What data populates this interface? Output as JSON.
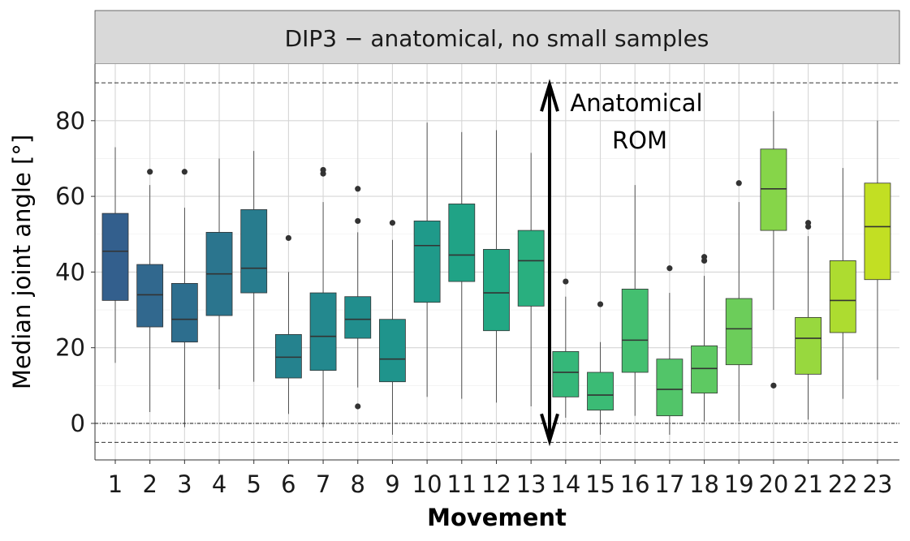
{
  "chart_data": {
    "type": "box",
    "title": "DIP3 − anatomical, no small samples",
    "xlabel": "Movement",
    "ylabel": "Median joint angle [°]",
    "ylim": [
      -10,
      94
    ],
    "yticks": [
      0,
      20,
      40,
      60,
      80
    ],
    "grid": true,
    "reference_lines": {
      "upper_rom": 90,
      "lower_rom": -5,
      "zero": 0
    },
    "annotation": {
      "line1": "Anatomical",
      "line2": "ROM",
      "arrow_from": -5,
      "arrow_to": 90
    },
    "categories": [
      "1",
      "2",
      "3",
      "4",
      "5",
      "6",
      "7",
      "8",
      "9",
      "10",
      "11",
      "12",
      "13",
      "14",
      "15",
      "16",
      "17",
      "18",
      "19",
      "20",
      "21",
      "22",
      "23"
    ],
    "boxes": [
      {
        "whisker_low": 16,
        "q1": 32.5,
        "median": 45.5,
        "q3": 55.5,
        "whisker_high": 73,
        "outliers": [],
        "color": "#335f8d"
      },
      {
        "whisker_low": 3,
        "q1": 25.5,
        "median": 34,
        "q3": 42,
        "whisker_high": 63,
        "outliers": [
          66.5
        ],
        "color": "#31688e"
      },
      {
        "whisker_low": -1,
        "q1": 21.5,
        "median": 27.5,
        "q3": 37,
        "whisker_high": 57,
        "outliers": [
          66.5
        ],
        "color": "#2d6e8e"
      },
      {
        "whisker_low": 9,
        "q1": 28.5,
        "median": 39.5,
        "q3": 50.5,
        "whisker_high": 70,
        "outliers": [],
        "color": "#2b758e"
      },
      {
        "whisker_low": 11,
        "q1": 34.5,
        "median": 41,
        "q3": 56.5,
        "whisker_high": 72,
        "outliers": [],
        "color": "#287c8e"
      },
      {
        "whisker_low": 2.5,
        "q1": 12,
        "median": 17.5,
        "q3": 23.5,
        "whisker_high": 40,
        "outliers": [
          49
        ],
        "color": "#25828e"
      },
      {
        "whisker_low": -1,
        "q1": 14,
        "median": 23,
        "q3": 34.5,
        "whisker_high": 58.5,
        "outliers": [
          66,
          67
        ],
        "color": "#23888e"
      },
      {
        "whisker_low": 9.5,
        "q1": 22.5,
        "median": 27.5,
        "q3": 33.5,
        "whisker_high": 50.5,
        "outliers": [
          4.5,
          53.5,
          62
        ],
        "color": "#218e8d"
      },
      {
        "whisker_low": -3,
        "q1": 11,
        "median": 17,
        "q3": 27.5,
        "whisker_high": 48.5,
        "outliers": [
          53
        ],
        "color": "#1f948c"
      },
      {
        "whisker_low": 7,
        "q1": 32,
        "median": 47,
        "q3": 53.5,
        "whisker_high": 79.5,
        "outliers": [],
        "color": "#1f9a8a"
      },
      {
        "whisker_low": 6.5,
        "q1": 37.5,
        "median": 44.5,
        "q3": 58,
        "whisker_high": 77,
        "outliers": [],
        "color": "#20a386"
      },
      {
        "whisker_low": 5.5,
        "q1": 24.5,
        "median": 34.5,
        "q3": 46,
        "whisker_high": 77.5,
        "outliers": [],
        "color": "#22a884"
      },
      {
        "whisker_low": 4.5,
        "q1": 31,
        "median": 43,
        "q3": 51,
        "whisker_high": 71.5,
        "outliers": [],
        "color": "#29af7f"
      },
      {
        "whisker_low": 1.5,
        "q1": 7,
        "median": 13.5,
        "q3": 19,
        "whisker_high": 33.5,
        "outliers": [
          37.5
        ],
        "color": "#35b779"
      },
      {
        "whisker_low": -3,
        "q1": 3.5,
        "median": 7.5,
        "q3": 13.5,
        "whisker_high": 21.5,
        "outliers": [
          31.5
        ],
        "color": "#3bbb75"
      },
      {
        "whisker_low": 2,
        "q1": 13.5,
        "median": 22,
        "q3": 35.5,
        "whisker_high": 63,
        "outliers": [],
        "color": "#44bf70"
      },
      {
        "whisker_low": -3,
        "q1": 2,
        "median": 9,
        "q3": 17,
        "whisker_high": 34.5,
        "outliers": [
          41
        ],
        "color": "#52c569"
      },
      {
        "whisker_low": 0.5,
        "q1": 8,
        "median": 14.5,
        "q3": 20.5,
        "whisker_high": 39,
        "outliers": [
          43,
          44
        ],
        "color": "#5ec962"
      },
      {
        "whisker_low": 0.5,
        "q1": 15.5,
        "median": 25,
        "q3": 33,
        "whisker_high": 58.5,
        "outliers": [
          63.5
        ],
        "color": "#6ccd5a"
      },
      {
        "whisker_low": 30,
        "q1": 51,
        "median": 62,
        "q3": 72.5,
        "whisker_high": 82.5,
        "outliers": [
          10
        ],
        "color": "#86d549"
      },
      {
        "whisker_low": 1,
        "q1": 13,
        "median": 22.5,
        "q3": 28,
        "whisker_high": 49.5,
        "outliers": [
          52,
          53
        ],
        "color": "#98d83e"
      },
      {
        "whisker_low": 6.5,
        "q1": 24,
        "median": 32.5,
        "q3": 43,
        "whisker_high": 67.5,
        "outliers": [],
        "color": "#addc30"
      },
      {
        "whisker_low": 11.5,
        "q1": 38,
        "median": 52,
        "q3": 63.5,
        "whisker_high": 80,
        "outliers": [],
        "color": "#c2df23"
      }
    ]
  }
}
